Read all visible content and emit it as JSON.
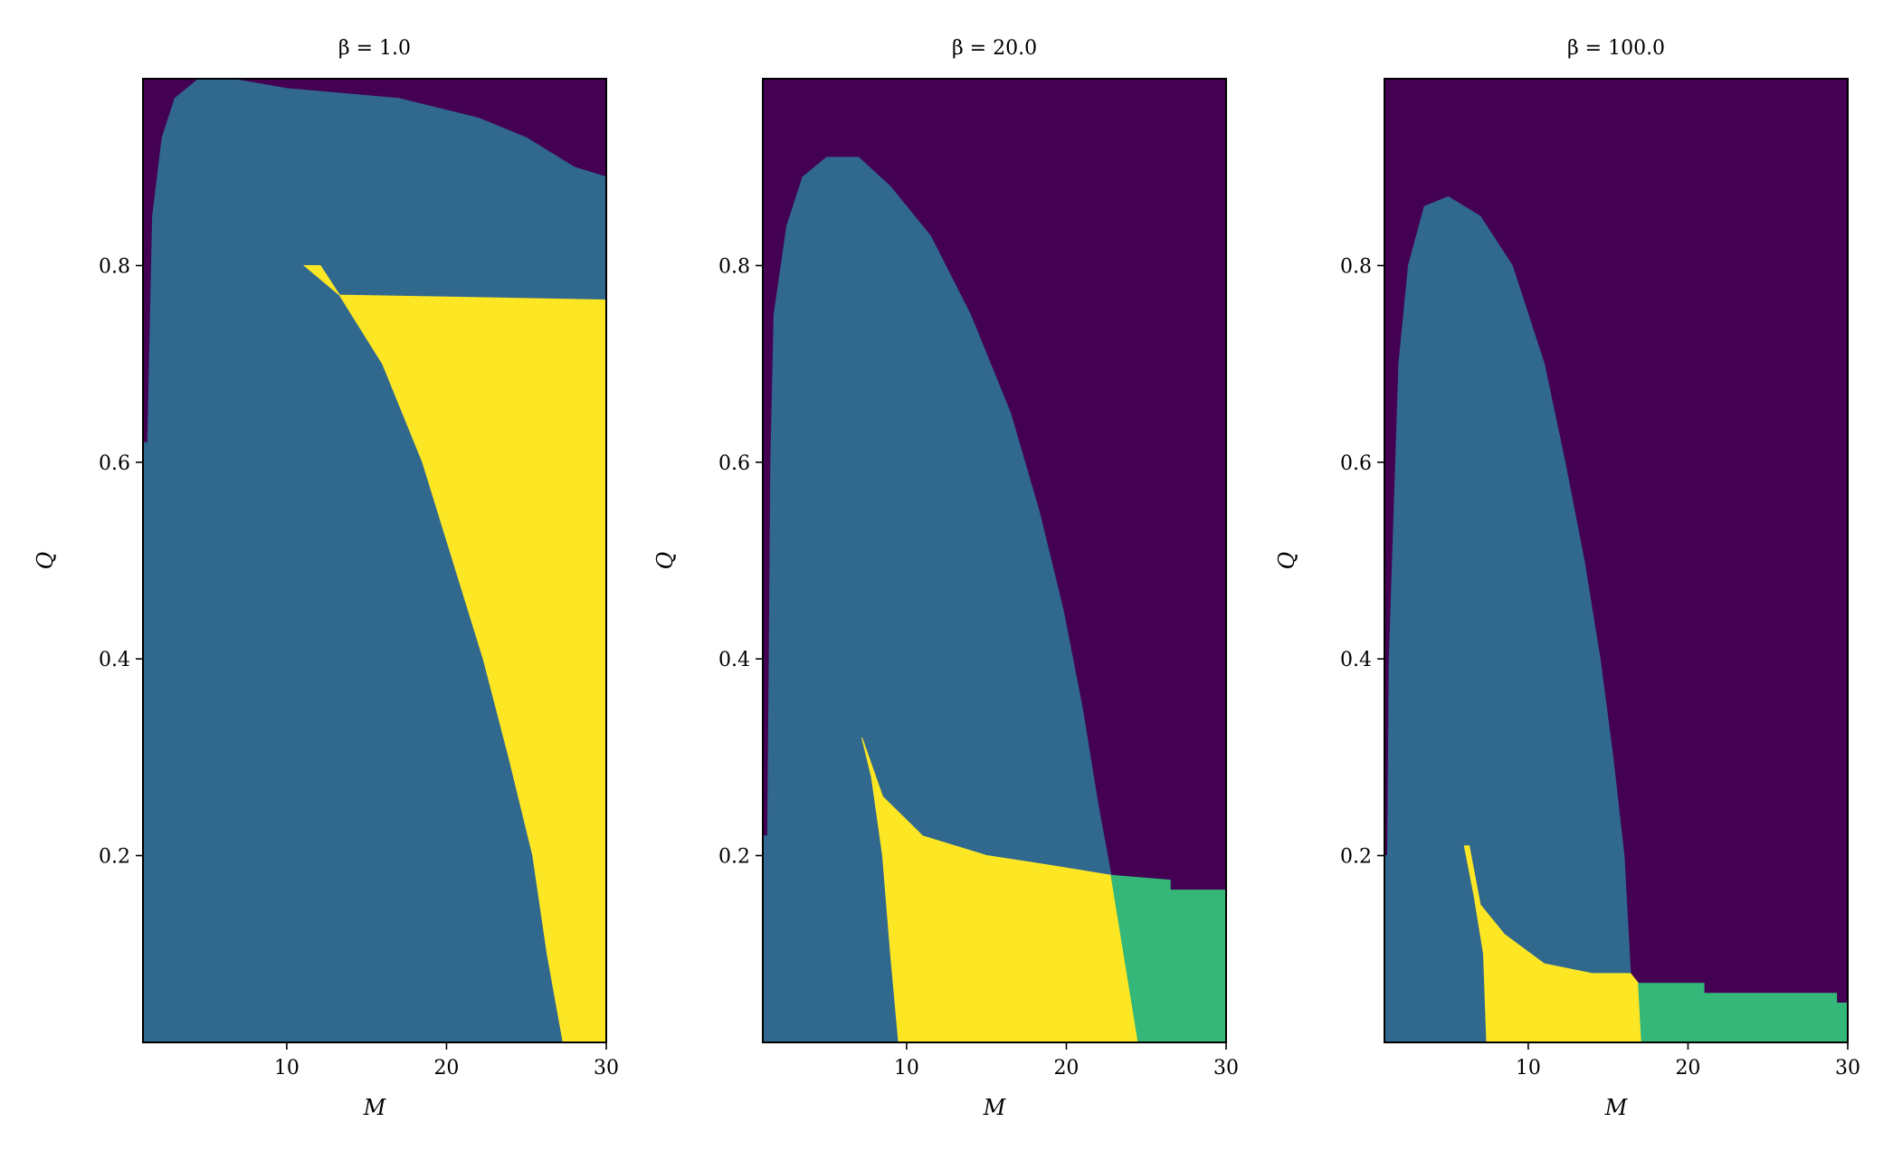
{
  "chart_data": [
    {
      "type": "heatmap",
      "title": "β = 1.0",
      "xlabel": "M",
      "ylabel": "Q",
      "xlim": [
        1,
        30
      ],
      "ylim": [
        0.01,
        0.99
      ],
      "xticks": [
        10,
        20,
        30
      ],
      "yticks": [
        0.2,
        0.4,
        0.6,
        0.8
      ],
      "xtick_labels": [
        "10",
        "20",
        "30"
      ],
      "ytick_labels": [
        "0.2",
        "0.4",
        "0.6",
        "0.8"
      ],
      "grid": false,
      "colors": {
        "0": "#440154",
        "1": "#31688e",
        "2": "#35b779",
        "3": "#fde725"
      },
      "regions": [
        {
          "value": 1,
          "boundary": [
            [
              1.0,
              0.01
            ],
            [
              27.3,
              0.01
            ],
            [
              26.3,
              0.1
            ],
            [
              25.4,
              0.2
            ],
            [
              23.9,
              0.3
            ],
            [
              22.3,
              0.4
            ],
            [
              20.4,
              0.5
            ],
            [
              18.5,
              0.6
            ],
            [
              16.0,
              0.7
            ],
            [
              13.3,
              0.77
            ],
            [
              12.1,
              0.8
            ],
            [
              11.1,
              0.8
            ],
            [
              11.1,
              0.77
            ],
            [
              30.0,
              0.765
            ],
            [
              30.0,
              0.89
            ],
            [
              28.0,
              0.9
            ],
            [
              25.0,
              0.93
            ],
            [
              22.0,
              0.95
            ],
            [
              17.0,
              0.97
            ],
            [
              10.0,
              0.98
            ],
            [
              6.5,
              0.99
            ],
            [
              4.5,
              0.99
            ],
            [
              3.0,
              0.97
            ],
            [
              2.2,
              0.93
            ],
            [
              1.6,
              0.85
            ],
            [
              1.4,
              0.7
            ],
            [
              1.3,
              0.62
            ],
            [
              1.0,
              0.62
            ]
          ]
        },
        {
          "value": 3,
          "boundary": [
            [
              11.1,
              0.8
            ],
            [
              12.1,
              0.8
            ],
            [
              13.3,
              0.77
            ],
            [
              30.0,
              0.765
            ],
            [
              30.0,
              0.01
            ],
            [
              27.3,
              0.01
            ],
            [
              26.3,
              0.1
            ],
            [
              25.4,
              0.2
            ],
            [
              23.9,
              0.3
            ],
            [
              22.3,
              0.4
            ],
            [
              20.4,
              0.5
            ],
            [
              18.5,
              0.6
            ],
            [
              16.0,
              0.7
            ],
            [
              13.3,
              0.77
            ]
          ]
        }
      ]
    },
    {
      "type": "heatmap",
      "title": "β = 20.0",
      "xlabel": "M",
      "ylabel": "Q",
      "xlim": [
        1,
        30
      ],
      "ylim": [
        0.01,
        0.99
      ],
      "xticks": [
        10,
        20,
        30
      ],
      "yticks": [
        0.2,
        0.4,
        0.6,
        0.8
      ],
      "xtick_labels": [
        "10",
        "20",
        "30"
      ],
      "ytick_labels": [
        "0.2",
        "0.4",
        "0.6",
        "0.8"
      ],
      "grid": false,
      "colors": {
        "0": "#440154",
        "1": "#31688e",
        "2": "#35b779",
        "3": "#fde725"
      },
      "regions": [
        {
          "value": 1,
          "boundary": [
            [
              1.0,
              0.01
            ],
            [
              9.5,
              0.01
            ],
            [
              9.0,
              0.1
            ],
            [
              8.5,
              0.2
            ],
            [
              7.8,
              0.28
            ],
            [
              7.2,
              0.32
            ],
            [
              8.5,
              0.26
            ],
            [
              11.0,
              0.22
            ],
            [
              15.0,
              0.2
            ],
            [
              19.0,
              0.19
            ],
            [
              22.8,
              0.18
            ],
            [
              22.0,
              0.25
            ],
            [
              21.0,
              0.35
            ],
            [
              19.8,
              0.45
            ],
            [
              18.3,
              0.55
            ],
            [
              16.5,
              0.65
            ],
            [
              14.0,
              0.75
            ],
            [
              11.5,
              0.83
            ],
            [
              9.0,
              0.88
            ],
            [
              7.0,
              0.91
            ],
            [
              5.0,
              0.91
            ],
            [
              3.5,
              0.89
            ],
            [
              2.5,
              0.84
            ],
            [
              1.7,
              0.75
            ],
            [
              1.5,
              0.6
            ],
            [
              1.4,
              0.4
            ],
            [
              1.3,
              0.22
            ],
            [
              1.0,
              0.22
            ]
          ]
        },
        {
          "value": 3,
          "boundary": [
            [
              9.5,
              0.01
            ],
            [
              24.5,
              0.01
            ],
            [
              24.0,
              0.06
            ],
            [
              23.4,
              0.12
            ],
            [
              22.8,
              0.18
            ],
            [
              19.0,
              0.19
            ],
            [
              15.0,
              0.2
            ],
            [
              11.0,
              0.22
            ],
            [
              8.5,
              0.26
            ],
            [
              7.2,
              0.32
            ],
            [
              7.8,
              0.28
            ],
            [
              8.5,
              0.2
            ],
            [
              9.0,
              0.1
            ]
          ]
        },
        {
          "value": 2,
          "boundary": [
            [
              24.5,
              0.01
            ],
            [
              30.0,
              0.01
            ],
            [
              30.0,
              0.165
            ],
            [
              26.5,
              0.165
            ],
            [
              26.5,
              0.175
            ],
            [
              22.8,
              0.18
            ],
            [
              23.4,
              0.12
            ],
            [
              24.0,
              0.06
            ]
          ]
        }
      ]
    },
    {
      "type": "heatmap",
      "title": "β = 100.0",
      "xlabel": "M",
      "ylabel": "Q",
      "xlim": [
        1,
        30
      ],
      "ylim": [
        0.01,
        0.99
      ],
      "xticks": [
        10,
        20,
        30
      ],
      "yticks": [
        0.2,
        0.4,
        0.6,
        0.8
      ],
      "xtick_labels": [
        "10",
        "20",
        "30"
      ],
      "ytick_labels": [
        "0.2",
        "0.4",
        "0.6",
        "0.8"
      ],
      "grid": false,
      "colors": {
        "0": "#440154",
        "1": "#31688e",
        "2": "#35b779",
        "3": "#fde725"
      },
      "regions": [
        {
          "value": 1,
          "boundary": [
            [
              1.0,
              0.01
            ],
            [
              7.4,
              0.01
            ],
            [
              7.2,
              0.1
            ],
            [
              6.6,
              0.16
            ],
            [
              6.0,
              0.21
            ],
            [
              6.3,
              0.21
            ],
            [
              7.0,
              0.15
            ],
            [
              8.5,
              0.12
            ],
            [
              11.0,
              0.09
            ],
            [
              14.0,
              0.08
            ],
            [
              16.4,
              0.08
            ],
            [
              16.0,
              0.2
            ],
            [
              15.3,
              0.3
            ],
            [
              14.5,
              0.4
            ],
            [
              13.5,
              0.5
            ],
            [
              12.3,
              0.6
            ],
            [
              11.0,
              0.7
            ],
            [
              9.0,
              0.8
            ],
            [
              7.0,
              0.85
            ],
            [
              5.0,
              0.87
            ],
            [
              3.5,
              0.86
            ],
            [
              2.5,
              0.8
            ],
            [
              1.9,
              0.7
            ],
            [
              1.6,
              0.55
            ],
            [
              1.3,
              0.4
            ],
            [
              1.2,
              0.2
            ],
            [
              1.0,
              0.2
            ]
          ]
        },
        {
          "value": 3,
          "boundary": [
            [
              7.4,
              0.01
            ],
            [
              17.1,
              0.01
            ],
            [
              16.9,
              0.07
            ],
            [
              16.4,
              0.08
            ],
            [
              14.0,
              0.08
            ],
            [
              11.0,
              0.09
            ],
            [
              8.5,
              0.12
            ],
            [
              7.0,
              0.15
            ],
            [
              6.3,
              0.21
            ],
            [
              6.0,
              0.21
            ],
            [
              6.6,
              0.16
            ],
            [
              7.2,
              0.1
            ]
          ]
        },
        {
          "value": 2,
          "boundary": [
            [
              17.1,
              0.01
            ],
            [
              30.0,
              0.01
            ],
            [
              30.0,
              0.05
            ],
            [
              29.3,
              0.05
            ],
            [
              29.3,
              0.06
            ],
            [
              21.0,
              0.06
            ],
            [
              21.0,
              0.07
            ],
            [
              16.9,
              0.07
            ]
          ]
        }
      ]
    }
  ]
}
